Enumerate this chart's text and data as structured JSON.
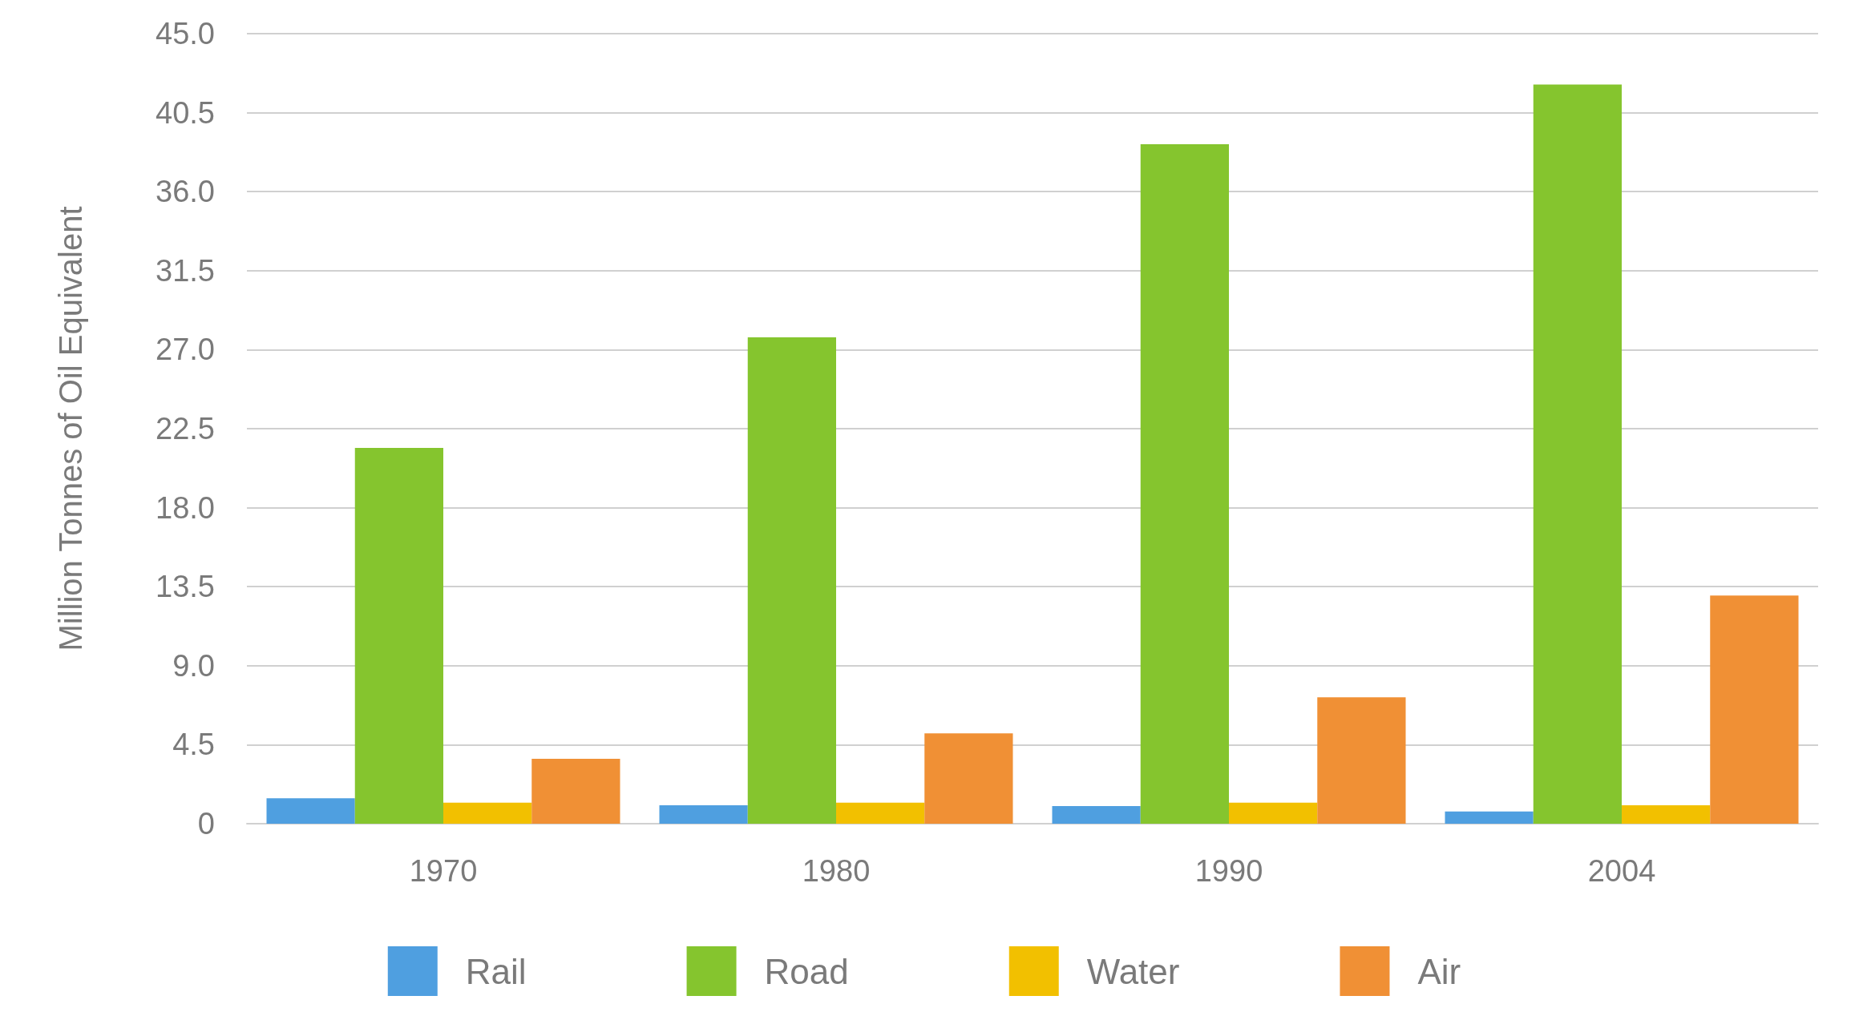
{
  "chart_data": {
    "type": "bar",
    "ylabel": "Million Tonnes of Oil Equivalent",
    "categories": [
      "1970",
      "1980",
      "1990",
      "2004"
    ],
    "series": [
      {
        "name": "Rail",
        "color": "#4f9fe0",
        "values": [
          1.45,
          1.05,
          1.0,
          0.7
        ]
      },
      {
        "name": "Road",
        "color": "#85c52e",
        "values": [
          21.4,
          27.7,
          38.7,
          42.1
        ]
      },
      {
        "name": "Water",
        "color": "#f2c000",
        "values": [
          1.2,
          1.2,
          1.2,
          1.05
        ]
      },
      {
        "name": "Air",
        "color": "#f09035",
        "values": [
          3.7,
          5.15,
          7.2,
          13.0
        ]
      }
    ],
    "ylim": [
      0,
      45
    ],
    "yticks": [
      0,
      4.5,
      {
        "value": 9,
        "label": "9.0"
      },
      13.5,
      {
        "value": 18,
        "label": "18.0"
      },
      22.5,
      {
        "value": 27,
        "label": "27.0"
      },
      31.5,
      {
        "value": 36,
        "label": "36.0"
      },
      40.5,
      {
        "value": 45,
        "label": "45.0"
      }
    ],
    "grid": "y",
    "legend": "bottom"
  }
}
